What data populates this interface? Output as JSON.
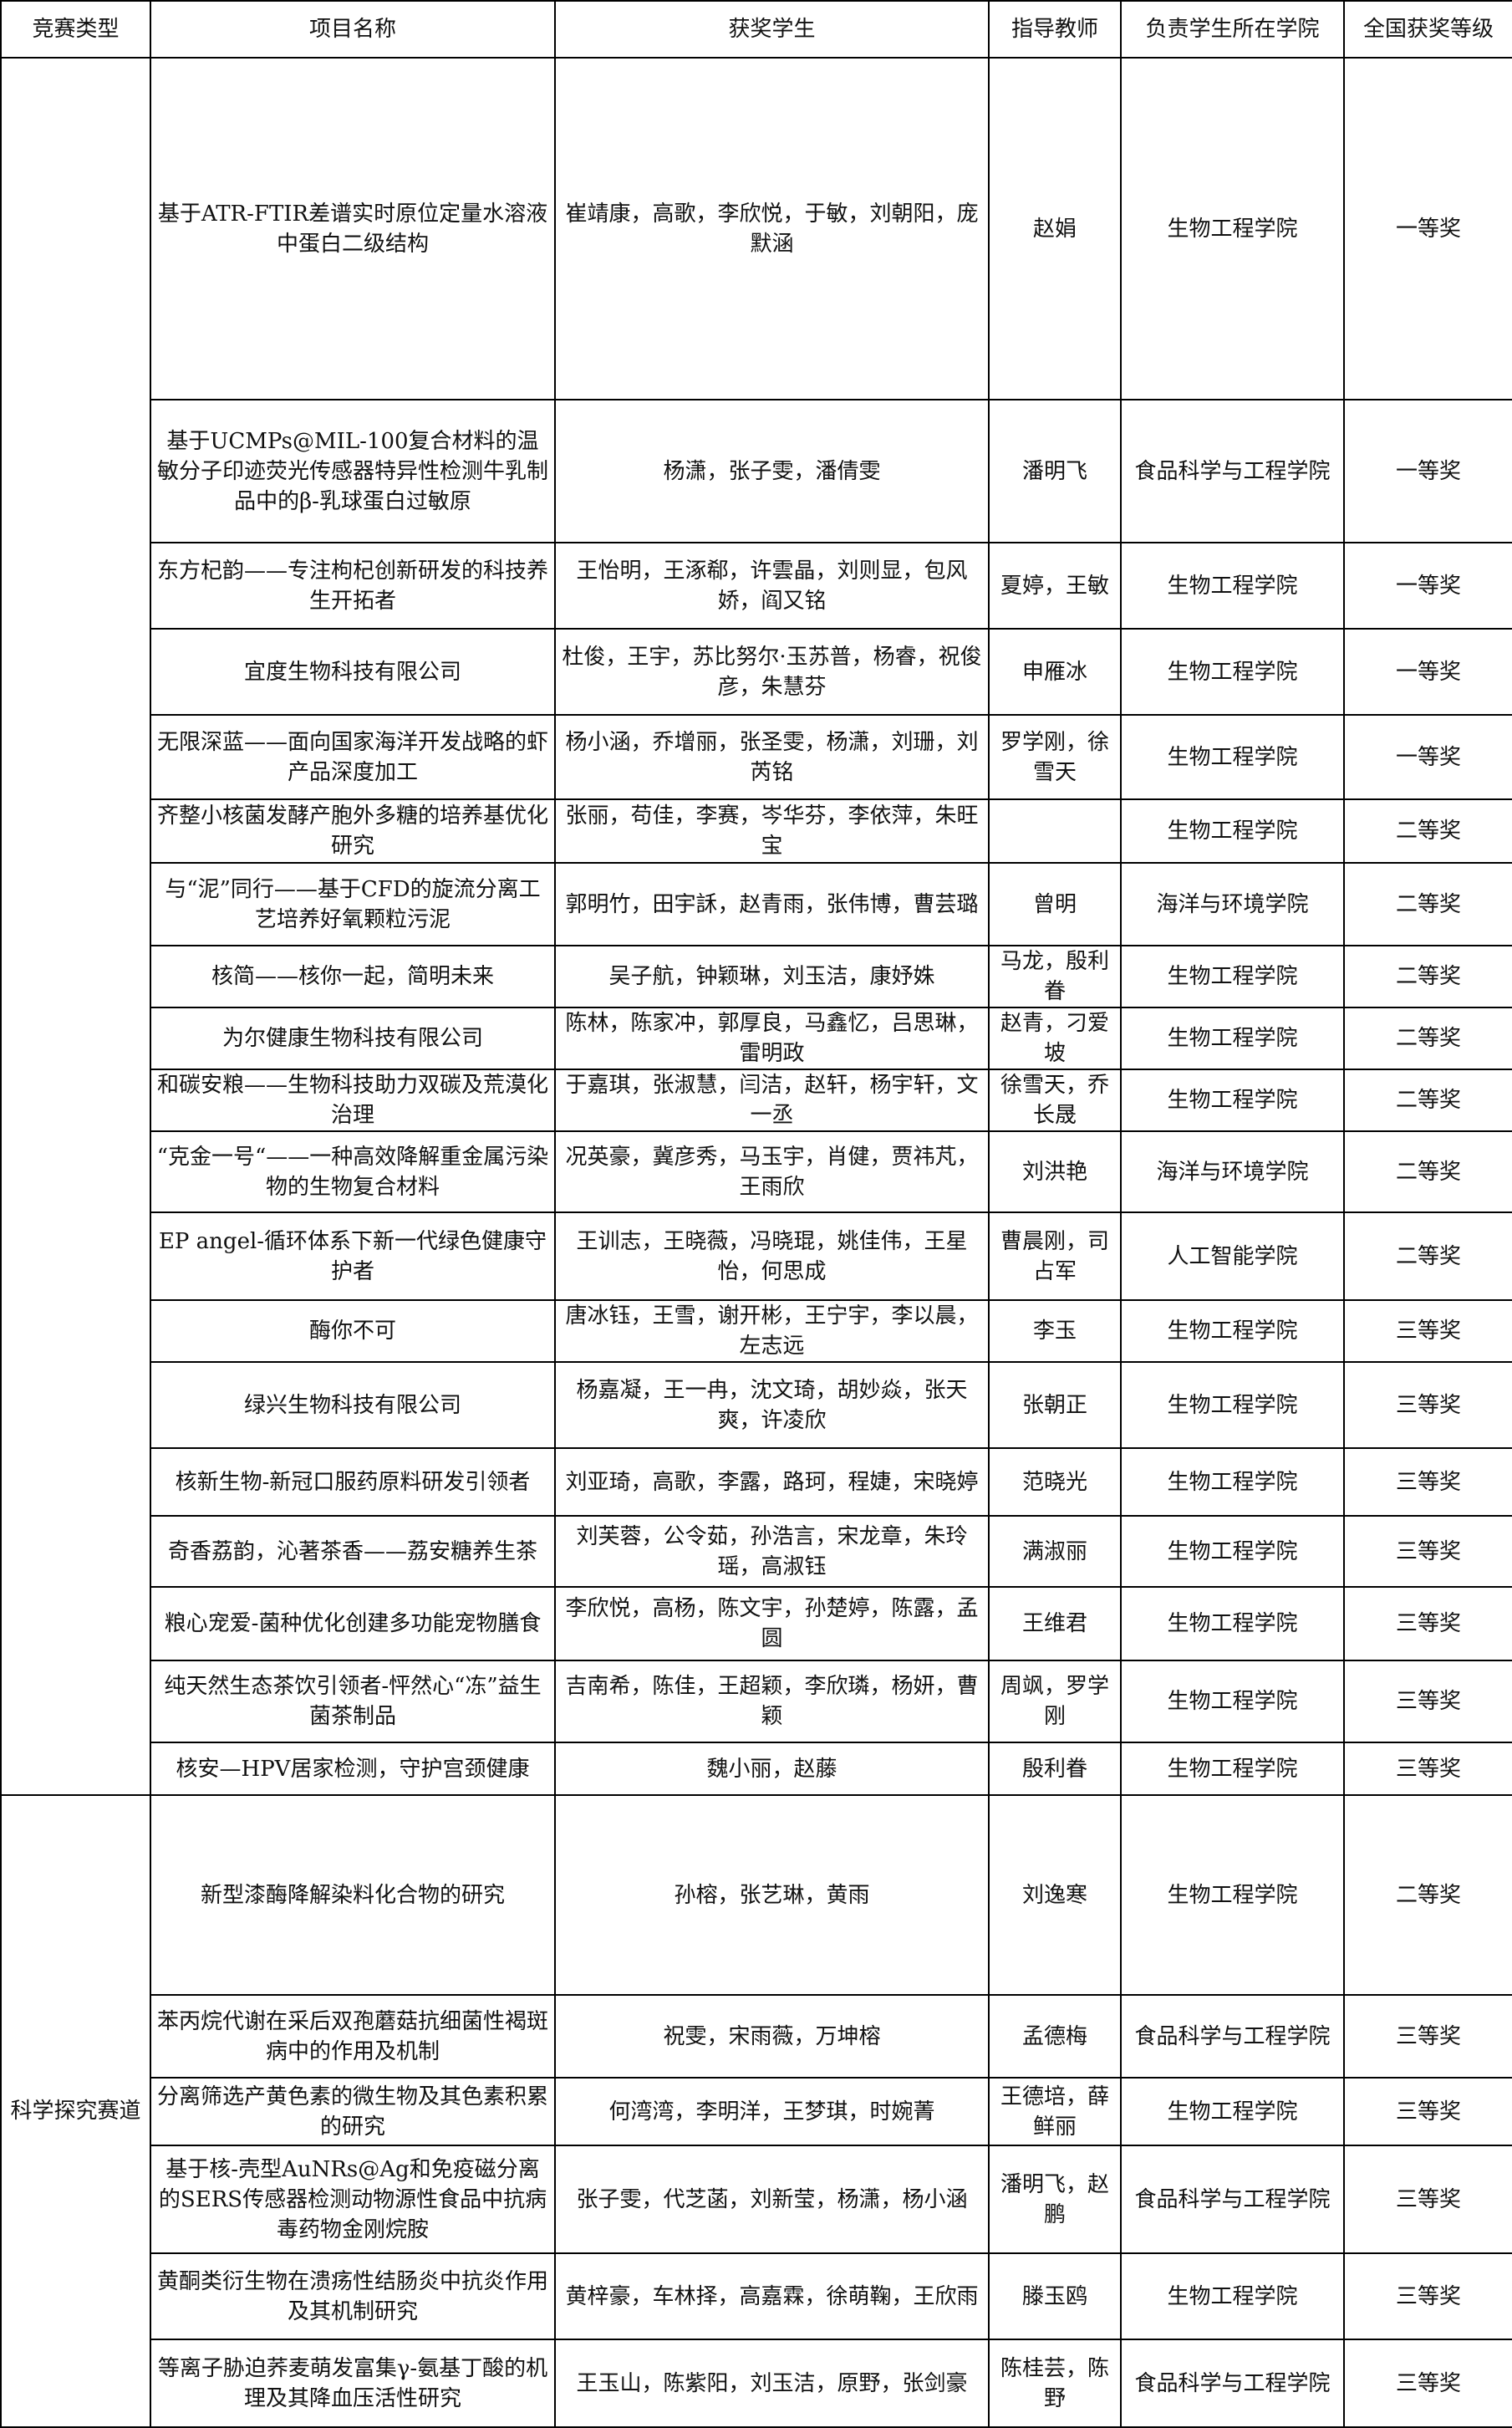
{
  "headers": [
    "竞赛类型",
    "项目名称",
    "获奖学生",
    "指导教师",
    "负责学生所在学院",
    "全国获奖等级"
  ],
  "groups": [
    {
      "category": "",
      "rows": [
        [
          "基于ATR-FTIR差谱实时原位定量水溶液中蛋白二级结构",
          "崔靖康，高歌，李欣悦，于敏，刘朝阳，庞默涵",
          "赵娟",
          "生物工程学院",
          "一等奖"
        ],
        [
          "基于UCMPs@MIL-100复合材料的温敏分子印迹荧光传感器特异性检测牛乳制品中的β-乳球蛋白过敏原",
          "杨潇，张子雯，潘倩雯",
          "潘明飞",
          "食品科学与工程学院",
          "一等奖"
        ],
        [
          "东方杞韵——专注枸杞创新研发的科技养生开拓者",
          "王怡明，王涿郗，许雲晶，刘则显，包风娇，阎又铭",
          "夏婷，王敏",
          "生物工程学院",
          "一等奖"
        ],
        [
          "宜度生物科技有限公司",
          "杜俊，王宇，苏比努尔·玉苏普，杨睿，祝俊彦，朱慧芬",
          "申雁冰",
          "生物工程学院",
          "一等奖"
        ],
        [
          "无限深蓝——面向国家海洋开发战略的虾产品深度加工",
          "杨小涵，乔增丽，张圣雯，杨潇，刘珊，刘芮铭",
          "罗学刚，徐雪天",
          "生物工程学院",
          "一等奖"
        ],
        [
          "齐整小核菌发酵产胞外多糖的培养基优化研究",
          "张丽，苟佳，李赛，岑华芬，李依萍，朱旺宝",
          "",
          "生物工程学院",
          "二等奖"
        ],
        [
          "与“泥”同行——基于CFD的旋流分离工艺培养好氧颗粒污泥",
          "郭明竹，田宇訸，赵青雨，张伟博，曹芸璐",
          "曾明",
          "海洋与环境学院",
          "二等奖"
        ],
        [
          "核简——核你一起，简明未来",
          "吴子航，钟颖琳，刘玉洁，康妤姝",
          "马龙，殷利眷",
          "生物工程学院",
          "二等奖"
        ],
        [
          "为尔健康生物科技有限公司",
          "陈林，陈家冲，郭厚良，马鑫忆，吕思琳，雷明政",
          "赵青，刁爱坡",
          "生物工程学院",
          "二等奖"
        ],
        [
          "和碳安粮——生物科技助力双碳及荒漠化治理",
          "于嘉琪，张淑慧，闫洁，赵轩，杨宇轩，文一丞",
          "徐雪天，乔长晟",
          "生物工程学院",
          "二等奖"
        ],
        [
          "“克金一号“——一种高效降解重金属污染物的生物复合材料",
          "况英豪，冀彦秀，马玉宇，肖健，贾祎芃，王雨欣",
          "刘洪艳",
          "海洋与环境学院",
          "二等奖"
        ],
        [
          "EP angel-循环体系下新一代绿色健康守护者",
          "王训志，王晓薇，冯晓琨，姚佳伟，王星怡，何思成",
          "曹晨刚，司占军",
          "人工智能学院",
          "二等奖"
        ],
        [
          "酶你不可",
          "唐冰钰，王雪，谢开彬，王宁宇，李以晨，左志远",
          "李玉",
          "生物工程学院",
          "三等奖"
        ],
        [
          "绿兴生物科技有限公司",
          "杨嘉凝，王一冉，沈文琦，胡妙焱，张天爽，许凌欣",
          "张朝正",
          "生物工程学院",
          "三等奖"
        ],
        [
          "核新生物-新冠口服药原料研发引领者",
          "刘亚琦，高歌，李露，路珂，程婕，宋晓婷",
          "范晓光",
          "生物工程学院",
          "三等奖"
        ],
        [
          "奇香荔韵，沁著茶香——荔安糖养生茶",
          "刘芙蓉，公令茹，孙浩言，宋龙章，朱玲瑶，高淑钰",
          "满淑丽",
          "生物工程学院",
          "三等奖"
        ],
        [
          "粮心宠爱-菌种优化创建多功能宠物膳食",
          "李欣悦，高杨，陈文宇，孙楚婷，陈露，孟圆",
          "王维君",
          "生物工程学院",
          "三等奖"
        ],
        [
          "纯天然生态茶饮引领者-怦然心“冻”益生菌茶制品",
          "吉南希，陈佳，王超颖，李欣璘，杨妍，曹颖",
          "周飒，罗学刚",
          "生物工程学院",
          "三等奖"
        ],
        [
          "核安—HPV居家检测，守护宫颈健康",
          "魏小丽，赵藤",
          "殷利眷",
          "生物工程学院",
          "三等奖"
        ]
      ]
    },
    {
      "category": "科学探究赛道",
      "rows": [
        [
          "新型漆酶降解染料化合物的研究",
          "孙榕，张艺琳，黄雨",
          "刘逸寒",
          "生物工程学院",
          "二等奖"
        ],
        [
          "苯丙烷代谢在采后双孢蘑菇抗细菌性褐斑病中的作用及机制",
          "祝雯，宋雨薇，万坤榕",
          "孟德梅",
          "食品科学与工程学院",
          "三等奖"
        ],
        [
          "分离筛选产黄色素的微生物及其色素积累的研究",
          "何湾湾，李明洋，王梦琪，时婉菁",
          "王德培，薛鲜丽",
          "生物工程学院",
          "三等奖"
        ],
        [
          "基于核-壳型AuNRs@Ag和免疫磁分离的SERS传感器检测动物源性食品中抗病毒药物金刚烷胺",
          "张子雯，代芝菡，刘新莹，杨潇，杨小涵",
          "潘明飞，赵鹏",
          "食品科学与工程学院",
          "三等奖"
        ],
        [
          "黄酮类衍生物在溃疡性结肠炎中抗炎作用及其机制研究",
          "黄梓豪，车林择，高嘉霖，徐萌鞠，王欣雨",
          "滕玉鸥",
          "生物工程学院",
          "三等奖"
        ],
        [
          "等离子胁迫荞麦萌发富集γ-氨基丁酸的机理及其降血压活性研究",
          "王玉山，陈紫阳，刘玉洁，原野，张剑豪",
          "陈桂芸，陈野",
          "食品科学与工程学院",
          "三等奖"
        ]
      ]
    }
  ]
}
